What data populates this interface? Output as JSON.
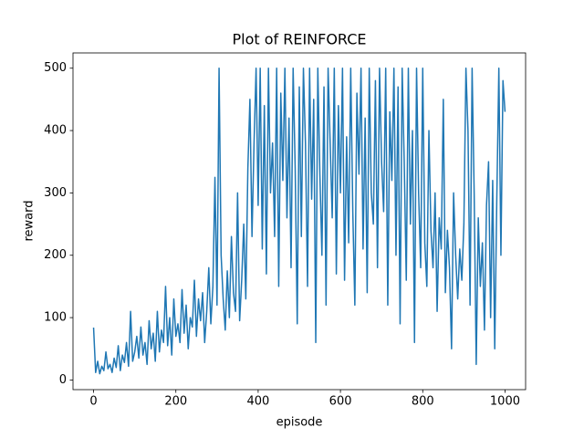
{
  "chart_data": {
    "type": "line",
    "title": "Plot of REINFORCE",
    "x_label": "episode",
    "y_label": "reward",
    "x": [
      0,
      5,
      10,
      15,
      20,
      25,
      30,
      35,
      40,
      45,
      50,
      55,
      60,
      65,
      70,
      75,
      80,
      85,
      90,
      95,
      100,
      105,
      110,
      115,
      120,
      125,
      130,
      135,
      140,
      145,
      150,
      155,
      160,
      165,
      170,
      175,
      180,
      185,
      190,
      195,
      200,
      205,
      210,
      215,
      220,
      225,
      230,
      235,
      240,
      245,
      250,
      255,
      260,
      265,
      270,
      275,
      280,
      285,
      290,
      295,
      300,
      305,
      310,
      315,
      320,
      325,
      330,
      335,
      340,
      345,
      350,
      355,
      360,
      365,
      370,
      375,
      380,
      385,
      390,
      395,
      400,
      405,
      410,
      415,
      420,
      425,
      430,
      435,
      440,
      445,
      450,
      455,
      460,
      465,
      470,
      475,
      480,
      485,
      490,
      495,
      500,
      505,
      510,
      515,
      520,
      525,
      530,
      535,
      540,
      545,
      550,
      555,
      560,
      565,
      570,
      575,
      580,
      585,
      590,
      595,
      600,
      605,
      610,
      615,
      620,
      625,
      630,
      635,
      640,
      645,
      650,
      655,
      660,
      665,
      670,
      675,
      680,
      685,
      690,
      695,
      700,
      705,
      710,
      715,
      720,
      725,
      730,
      735,
      740,
      745,
      750,
      755,
      760,
      765,
      770,
      775,
      780,
      785,
      790,
      795,
      800,
      805,
      810,
      815,
      820,
      825,
      830,
      835,
      840,
      845,
      850,
      855,
      860,
      865,
      870,
      875,
      880,
      885,
      890,
      895,
      900,
      905,
      910,
      915,
      920,
      925,
      930,
      935,
      940,
      945,
      950,
      955,
      960,
      965,
      970,
      975,
      980,
      985,
      990,
      995,
      1000
    ],
    "values": [
      84,
      12,
      30,
      10,
      22,
      15,
      45,
      18,
      25,
      12,
      35,
      20,
      55,
      15,
      40,
      28,
      60,
      22,
      110,
      30,
      45,
      70,
      35,
      85,
      40,
      60,
      25,
      95,
      50,
      75,
      30,
      110,
      45,
      80,
      60,
      150,
      55,
      100,
      40,
      130,
      70,
      90,
      60,
      145,
      75,
      120,
      50,
      100,
      85,
      160,
      70,
      130,
      95,
      140,
      60,
      110,
      180,
      90,
      150,
      325,
      120,
      500,
      200,
      130,
      80,
      175,
      100,
      230,
      140,
      110,
      300,
      95,
      160,
      250,
      130,
      340,
      450,
      230,
      380,
      500,
      280,
      500,
      210,
      440,
      170,
      500,
      300,
      380,
      230,
      500,
      150,
      460,
      320,
      500,
      260,
      420,
      180,
      500,
      340,
      90,
      470,
      230,
      500,
      380,
      150,
      500,
      290,
      450,
      60,
      500,
      330,
      200,
      470,
      120,
      500,
      380,
      260,
      500,
      170,
      440,
      300,
      500,
      160,
      390,
      220,
      500,
      270,
      120,
      460,
      330,
      500,
      210,
      420,
      140,
      500,
      300,
      250,
      480,
      180,
      500,
      350,
      270,
      500,
      120,
      430,
      320,
      500,
      200,
      470,
      90,
      500,
      350,
      160,
      500,
      250,
      400,
      60,
      500,
      300,
      180,
      500,
      220,
      150,
      400,
      240,
      180,
      300,
      110,
      260,
      210,
      450,
      140,
      240,
      180,
      50,
      300,
      200,
      130,
      210,
      160,
      250,
      500,
      400,
      120,
      500,
      300,
      25,
      260,
      150,
      220,
      80,
      280,
      350,
      100,
      320,
      50,
      290,
      500,
      200,
      480,
      430
    ],
    "color": "#1f77b4",
    "xlim": [
      -50,
      1050
    ],
    "ylim": [
      -15.5,
      524.5
    ],
    "xticks": [
      0,
      200,
      400,
      600,
      800,
      1000
    ],
    "yticks": [
      0,
      100,
      200,
      300,
      400,
      500
    ],
    "grid": false
  }
}
